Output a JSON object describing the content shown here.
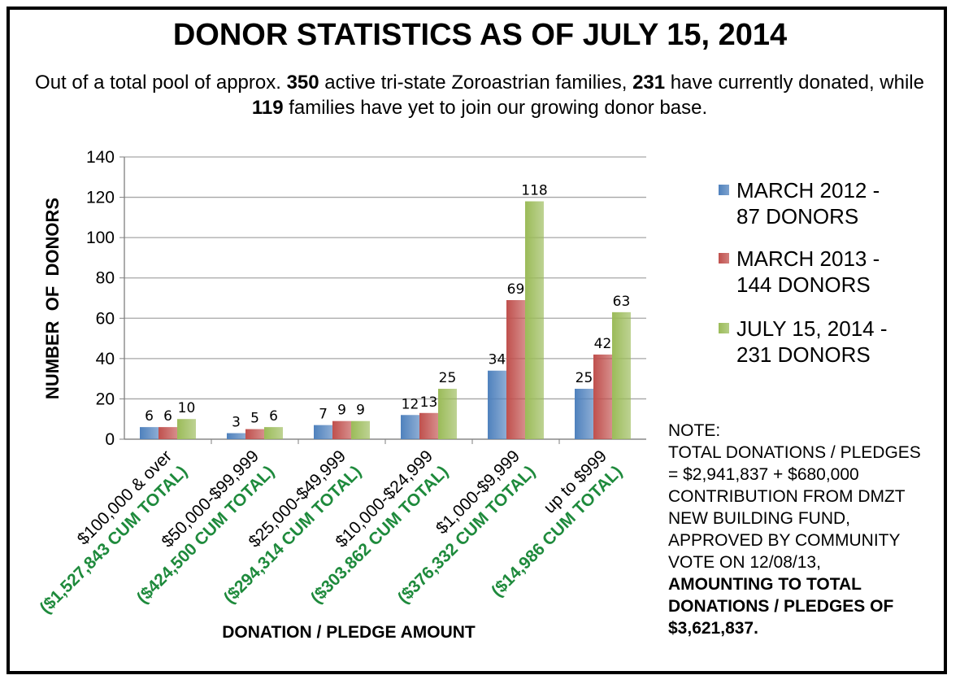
{
  "header": {
    "title": "DONOR STATISTICS AS OF JULY 15, 2014",
    "sub_a": "Out of a total pool of approx. ",
    "sub_b": "350",
    "sub_c": " active tri-state Zoroastrian families, ",
    "sub_d": "231",
    "sub_e": " have currently donated, while ",
    "sub_f": "119",
    "sub_g": " families have yet to join our growing donor base."
  },
  "chart_data": {
    "type": "bar",
    "ylabel": "NUMBER  OF  DONORS",
    "xlabel": "DONATION / PLEDGE AMOUNT",
    "ylim": [
      0,
      140
    ],
    "yticks": [
      0,
      20,
      40,
      60,
      80,
      100,
      120,
      140
    ],
    "grid": true,
    "legend_position": "right",
    "categories": [
      "$100,000 & over",
      "$50,000-$99,999",
      "$25,000-$49,999",
      "$10,000-$24,999",
      "$1,000-$9,999",
      "up to $999"
    ],
    "category_totals": [
      "($1,527,843 CUM TOTAL)",
      "($424,500 CUM TOTAL)",
      "($294,314 CUM TOTAL)",
      "($303.862 CUM TOTAL)",
      "($376,332 CUM TOTAL)",
      "($14,986 CUM TOTAL)"
    ],
    "series": [
      {
        "name": "MARCH 2012 -\n87 DONORS",
        "color": "#4f81bd",
        "values": [
          6,
          3,
          7,
          12,
          34,
          25
        ]
      },
      {
        "name": "MARCH 2013 -\n144 DONORS",
        "color": "#c0504d",
        "values": [
          6,
          5,
          9,
          13,
          69,
          42
        ]
      },
      {
        "name": "JULY 15, 2014 -\n231 DONORS",
        "color": "#9bbb59",
        "values": [
          10,
          6,
          9,
          25,
          118,
          63
        ]
      }
    ]
  },
  "note": {
    "line1": "NOTE:",
    "line2": "TOTAL DONATIONS / PLEDGES",
    "line3": "= $2,941,837 + $680,000",
    "line4": "CONTRIBUTION FROM DMZT",
    "line5": "NEW BUILDING FUND,",
    "line6": "APPROVED BY COMMUNITY",
    "line7": "VOTE ON 12/08/13,",
    "line8": "AMOUNTING TO TOTAL",
    "line9": "DONATIONS / PLEDGES OF",
    "line10": "$3,621,837."
  },
  "colors": {
    "total_text": "#1e8a3c",
    "grid": "#a6a6a6"
  }
}
